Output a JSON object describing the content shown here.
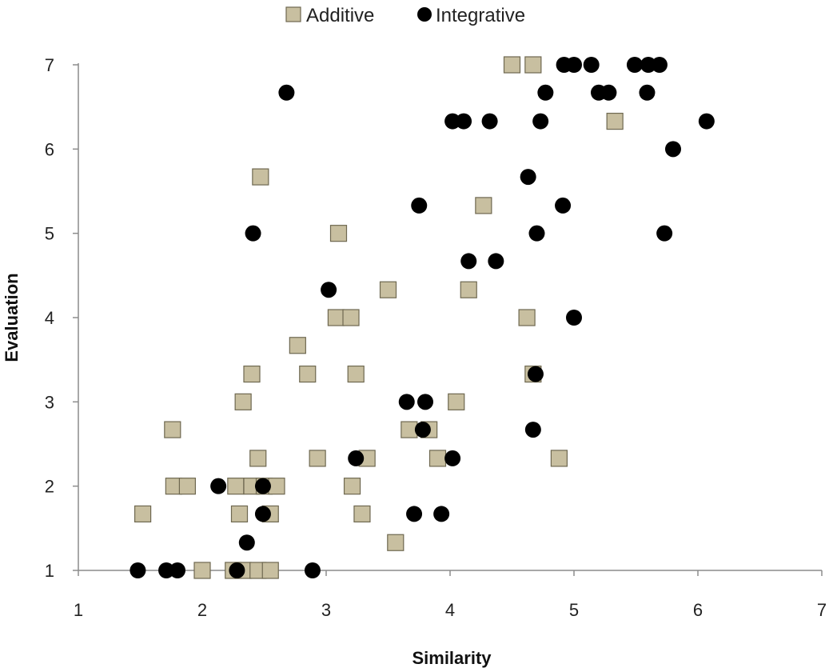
{
  "chart_data": {
    "type": "scatter",
    "xlabel": "Similarity",
    "ylabel": "Evaluation",
    "xlim": [
      1,
      7
    ],
    "ylim": [
      1,
      7
    ],
    "xticks": [
      1,
      2,
      3,
      4,
      5,
      6,
      7
    ],
    "yticks": [
      1,
      2,
      3,
      4,
      5,
      6,
      7
    ],
    "grid": false,
    "legend_position": "top-center",
    "series": [
      {
        "name": "Additive",
        "marker": "square",
        "color": "#c8bfa0",
        "stroke": "#6e6850",
        "points": [
          [
            4.5,
            7
          ],
          [
            4.67,
            7
          ],
          [
            5.33,
            6.33
          ],
          [
            2.47,
            5.67
          ],
          [
            4.27,
            5.33
          ],
          [
            3.1,
            5
          ],
          [
            3.5,
            4.33
          ],
          [
            4.15,
            4.33
          ],
          [
            3.08,
            4
          ],
          [
            3.2,
            4
          ],
          [
            4.62,
            4
          ],
          [
            2.77,
            3.67
          ],
          [
            2.4,
            3.33
          ],
          [
            2.85,
            3.33
          ],
          [
            3.24,
            3.33
          ],
          [
            4.67,
            3.33
          ],
          [
            2.33,
            3
          ],
          [
            4.05,
            3
          ],
          [
            1.76,
            2.67
          ],
          [
            3.67,
            2.67
          ],
          [
            3.83,
            2.67
          ],
          [
            2.45,
            2.33
          ],
          [
            2.93,
            2.33
          ],
          [
            3.33,
            2.33
          ],
          [
            3.9,
            2.33
          ],
          [
            4.88,
            2.33
          ],
          [
            1.77,
            2
          ],
          [
            1.88,
            2
          ],
          [
            2.27,
            2
          ],
          [
            2.4,
            2
          ],
          [
            2.5,
            2
          ],
          [
            2.6,
            2
          ],
          [
            3.21,
            2
          ],
          [
            1.52,
            1.67
          ],
          [
            2.3,
            1.67
          ],
          [
            2.55,
            1.67
          ],
          [
            3.29,
            1.67
          ],
          [
            3.56,
            1.33
          ],
          [
            2.0,
            1
          ],
          [
            2.25,
            1
          ],
          [
            2.33,
            1
          ],
          [
            2.45,
            1
          ],
          [
            2.55,
            1
          ]
        ]
      },
      {
        "name": "Integrative",
        "marker": "circle",
        "color": "#000000",
        "stroke": "#000000",
        "points": [
          [
            4.92,
            7
          ],
          [
            5.0,
            7
          ],
          [
            5.14,
            7
          ],
          [
            5.49,
            7
          ],
          [
            5.6,
            7
          ],
          [
            5.69,
            7
          ],
          [
            2.68,
            6.67
          ],
          [
            4.77,
            6.67
          ],
          [
            5.2,
            6.67
          ],
          [
            5.28,
            6.67
          ],
          [
            5.59,
            6.67
          ],
          [
            4.02,
            6.33
          ],
          [
            4.11,
            6.33
          ],
          [
            4.32,
            6.33
          ],
          [
            4.73,
            6.33
          ],
          [
            6.07,
            6.33
          ],
          [
            5.8,
            6
          ],
          [
            4.63,
            5.67
          ],
          [
            3.75,
            5.33
          ],
          [
            4.91,
            5.33
          ],
          [
            2.41,
            5
          ],
          [
            4.7,
            5
          ],
          [
            5.73,
            5
          ],
          [
            4.15,
            4.67
          ],
          [
            4.37,
            4.67
          ],
          [
            3.02,
            4.33
          ],
          [
            5.0,
            4
          ],
          [
            4.69,
            3.33
          ],
          [
            3.65,
            3
          ],
          [
            3.8,
            3
          ],
          [
            3.78,
            2.67
          ],
          [
            4.67,
            2.67
          ],
          [
            3.24,
            2.33
          ],
          [
            4.02,
            2.33
          ],
          [
            2.13,
            2
          ],
          [
            2.49,
            2
          ],
          [
            2.49,
            1.67
          ],
          [
            3.71,
            1.67
          ],
          [
            3.93,
            1.67
          ],
          [
            2.36,
            1.33
          ],
          [
            1.48,
            1
          ],
          [
            1.71,
            1
          ],
          [
            1.8,
            1
          ],
          [
            2.28,
            1
          ],
          [
            2.89,
            1
          ]
        ]
      }
    ]
  }
}
